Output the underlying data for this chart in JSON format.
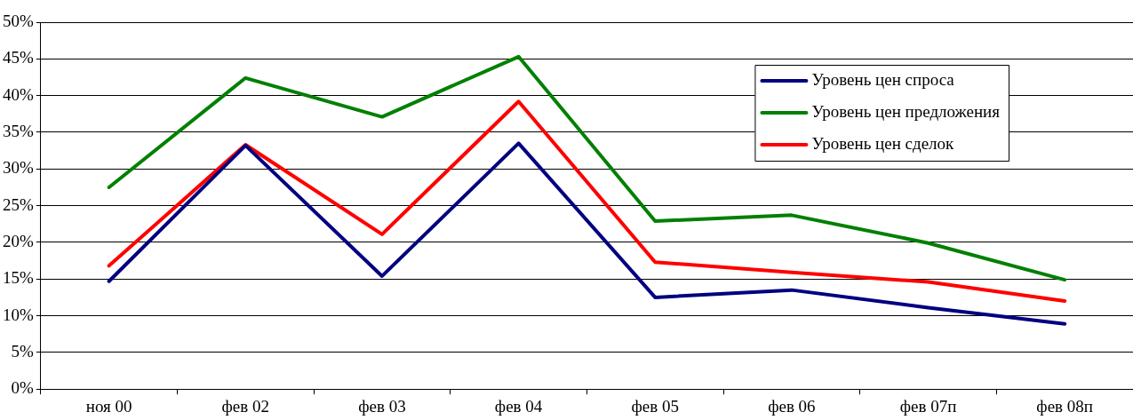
{
  "chart_data": {
    "type": "line",
    "categories": [
      "ноя 00",
      "фев 02",
      "фев 03",
      "фев 04",
      "фев 05",
      "фев 06",
      "фев 07п",
      "фев 08п"
    ],
    "series": [
      {
        "name": "Уровень цен спроса",
        "color": "#000080",
        "values": [
          14.7,
          33.2,
          15.4,
          33.5,
          12.5,
          13.5,
          11.1,
          8.9
        ]
      },
      {
        "name": "Уровень цен предложения",
        "color": "#008000",
        "values": [
          27.5,
          42.4,
          37.1,
          45.3,
          22.9,
          23.7,
          19.9,
          14.9
        ]
      },
      {
        "name": "Уровень цен сделок",
        "color": "#ff0000",
        "values": [
          16.8,
          33.3,
          21.1,
          39.2,
          17.3,
          15.9,
          14.6,
          12.0
        ]
      }
    ],
    "ylim": [
      0,
      50
    ],
    "yticks": [
      {
        "value": 0,
        "label": "0%"
      },
      {
        "value": 5,
        "label": "5%"
      },
      {
        "value": 10,
        "label": "10%"
      },
      {
        "value": 15,
        "label": "15%"
      },
      {
        "value": 20,
        "label": "20%"
      },
      {
        "value": 25,
        "label": "25%"
      },
      {
        "value": 30,
        "label": "30%"
      },
      {
        "value": 35,
        "label": "35%"
      },
      {
        "value": 40,
        "label": "40%"
      },
      {
        "value": 45,
        "label": "45%"
      },
      {
        "value": 50,
        "label": "50%"
      }
    ],
    "grid": "y",
    "legend": "top right",
    "marker": "none",
    "line_style": "solid"
  }
}
